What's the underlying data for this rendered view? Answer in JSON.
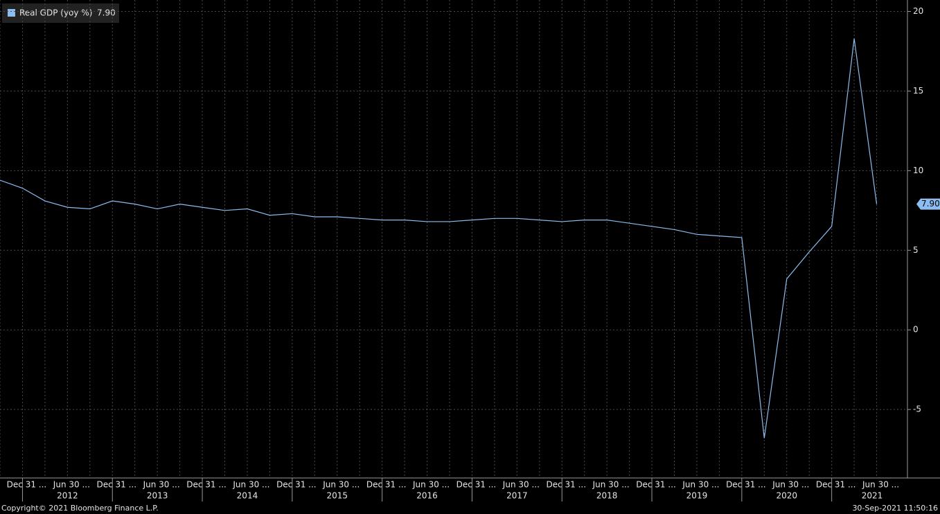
{
  "chart_data": {
    "type": "line",
    "series": [
      {
        "name": "Real GDP (yoy %)",
        "color": "#8cbcf0",
        "values": [
          9.4,
          8.9,
          8.1,
          7.7,
          7.6,
          8.1,
          7.9,
          7.6,
          7.9,
          7.7,
          7.5,
          7.6,
          7.2,
          7.3,
          7.1,
          7.1,
          7.0,
          6.9,
          6.9,
          6.8,
          6.8,
          6.9,
          7.0,
          7.0,
          6.9,
          6.8,
          6.9,
          6.9,
          6.7,
          6.5,
          6.3,
          6.0,
          5.9,
          5.8,
          -6.8,
          3.2,
          4.9,
          6.5,
          18.3,
          7.9
        ],
        "value_labels": [
          null,
          null,
          null,
          null,
          null,
          null,
          null,
          null,
          null,
          null,
          null,
          null,
          null,
          null,
          null,
          null,
          null,
          null,
          null,
          null,
          null,
          null,
          null,
          null,
          null,
          null,
          null,
          null,
          null,
          null,
          null,
          null,
          null,
          null,
          null,
          null,
          null,
          null,
          null,
          "7.90"
        ]
      }
    ],
    "categories": [
      null,
      "Dec 31 ...",
      null,
      "Jun 30 ...",
      null,
      "Dec 31 ...",
      null,
      "Jun 30 ...",
      null,
      "Dec 31 ...",
      null,
      "Jun 30 ...",
      null,
      "Dec 31 ...",
      null,
      "Jun 30 ...",
      null,
      "Dec 31 ...",
      null,
      "Jun 30 ...",
      null,
      "Dec 31 ...",
      null,
      "Jun 30 ...",
      null,
      "Dec 31 ...",
      null,
      "Jun 30 ...",
      null,
      "Dec 31 ...",
      null,
      "Jun 30 ...",
      null,
      "Dec 31 ...",
      null,
      "Jun 30 ...",
      null,
      "Dec 31 ...",
      null,
      "Jun 30 ..."
    ],
    "year_groups": [
      "2012",
      "2013",
      "2014",
      "2015",
      "2016",
      "2017",
      "2018",
      "2019",
      "2020",
      "2021"
    ],
    "ylim": [
      -9.3,
      20.5
    ],
    "yticks": [
      20,
      15,
      10,
      5,
      0,
      -5
    ],
    "grid": true
  },
  "footer": {
    "copyright": "Copyright© 2021 Bloomberg Finance L.P.",
    "timestamp": "30-Sep-2021 11:50:16"
  }
}
